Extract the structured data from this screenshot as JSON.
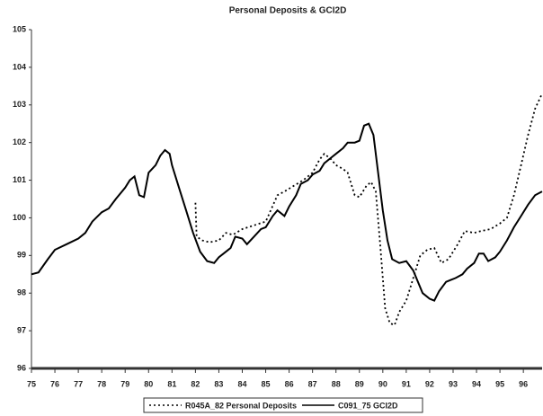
{
  "chart_data": {
    "type": "line",
    "title": "Personal Deposits & GCI2D",
    "xlim": [
      75,
      96.8
    ],
    "xticks": [
      75,
      76,
      77,
      78,
      79,
      80,
      81,
      82,
      83,
      84,
      85,
      86,
      87,
      88,
      89,
      90,
      91,
      92,
      93,
      94,
      95,
      96
    ],
    "ylim": [
      96,
      105
    ],
    "yticks": [
      96,
      97,
      98,
      99,
      100,
      101,
      102,
      103,
      104,
      105
    ],
    "legend": "bottom",
    "series": [
      {
        "name": "R045A_82 Personal Deposits",
        "color": "#000000",
        "style": "dotted",
        "x": [
          82.0,
          82.05,
          82.3,
          82.6,
          83.0,
          83.3,
          83.6,
          84.0,
          84.5,
          85.0,
          85.5,
          85.8,
          86.2,
          86.6,
          87.0,
          87.3,
          87.5,
          87.8,
          88.0,
          88.3,
          88.5,
          88.8,
          89.0,
          89.3,
          89.5,
          89.7,
          89.9,
          90.1,
          90.3,
          90.5,
          90.7,
          91.0,
          91.3,
          91.6,
          91.9,
          92.2,
          92.5,
          92.8,
          93.2,
          93.5,
          93.9,
          94.2,
          94.6,
          95.0,
          95.3,
          95.6,
          95.9,
          96.2,
          96.5,
          96.8
        ],
        "values": [
          100.4,
          99.5,
          99.4,
          99.35,
          99.4,
          99.6,
          99.55,
          99.7,
          99.8,
          99.9,
          100.6,
          100.7,
          100.85,
          101.0,
          101.2,
          101.55,
          101.7,
          101.55,
          101.4,
          101.3,
          101.2,
          100.6,
          100.55,
          100.85,
          100.95,
          100.7,
          99.2,
          97.6,
          97.2,
          97.15,
          97.5,
          97.8,
          98.4,
          99.0,
          99.15,
          99.2,
          98.8,
          98.9,
          99.3,
          99.65,
          99.6,
          99.65,
          99.7,
          99.85,
          100.0,
          100.6,
          101.4,
          102.2,
          102.9,
          103.3
        ]
      },
      {
        "name": "C091_75 GCI2D",
        "color": "#000000",
        "style": "solid",
        "x": [
          75.0,
          75.3,
          75.7,
          76.0,
          76.5,
          77.0,
          77.3,
          77.6,
          78.0,
          78.3,
          78.6,
          79.0,
          79.2,
          79.4,
          79.6,
          79.8,
          80.0,
          80.3,
          80.5,
          80.7,
          80.9,
          81.0,
          81.3,
          81.6,
          81.9,
          82.2,
          82.5,
          82.8,
          83.0,
          83.2,
          83.5,
          83.7,
          84.0,
          84.2,
          84.5,
          84.8,
          85.0,
          85.3,
          85.5,
          85.8,
          86.0,
          86.3,
          86.5,
          86.8,
          87.0,
          87.3,
          87.5,
          87.8,
          88.0,
          88.3,
          88.5,
          88.8,
          89.0,
          89.2,
          89.4,
          89.6,
          89.8,
          90.0,
          90.2,
          90.4,
          90.7,
          91.0,
          91.3,
          91.5,
          91.7,
          92.0,
          92.2,
          92.4,
          92.7,
          92.9,
          93.1,
          93.4,
          93.6,
          93.9,
          94.1,
          94.3,
          94.5,
          94.8,
          95.0,
          95.3,
          95.6,
          95.9,
          96.2,
          96.5,
          96.8
        ],
        "values": [
          98.5,
          98.55,
          98.9,
          99.15,
          99.3,
          99.45,
          99.6,
          99.9,
          100.15,
          100.25,
          100.5,
          100.8,
          101.0,
          101.1,
          100.6,
          100.55,
          101.2,
          101.4,
          101.65,
          101.8,
          101.7,
          101.4,
          100.8,
          100.2,
          99.6,
          99.1,
          98.85,
          98.8,
          98.95,
          99.05,
          99.2,
          99.5,
          99.45,
          99.3,
          99.5,
          99.7,
          99.75,
          100.05,
          100.2,
          100.05,
          100.3,
          100.6,
          100.9,
          101.0,
          101.15,
          101.25,
          101.45,
          101.6,
          101.7,
          101.85,
          102.0,
          102.0,
          102.05,
          102.45,
          102.5,
          102.2,
          101.2,
          100.2,
          99.4,
          98.9,
          98.8,
          98.85,
          98.6,
          98.3,
          98.0,
          97.85,
          97.8,
          98.05,
          98.3,
          98.35,
          98.4,
          98.5,
          98.65,
          98.8,
          99.05,
          99.05,
          98.85,
          98.95,
          99.1,
          99.4,
          99.75,
          100.05,
          100.35,
          100.6,
          100.7
        ]
      }
    ]
  }
}
